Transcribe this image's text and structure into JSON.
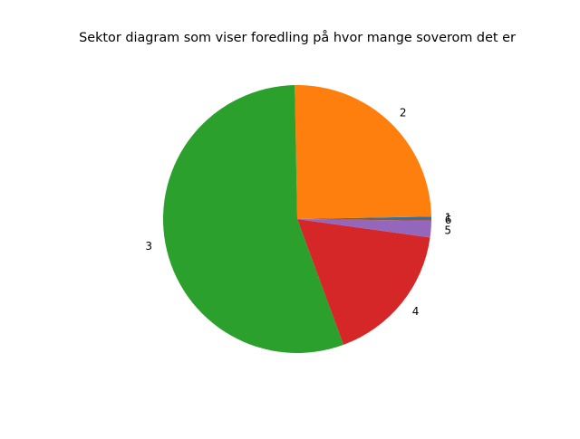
{
  "chart_data": {
    "type": "pie",
    "title": "Sektor diagram som viser foredling på hvor mange soverom det er",
    "start_angle_deg": 0,
    "direction": "counterclockwise",
    "legend": "none",
    "slices": [
      {
        "label": "1",
        "value": 0.3,
        "color": "#1f77b4"
      },
      {
        "label": "2",
        "value": 25.0,
        "color": "#ff7f0e"
      },
      {
        "label": "3",
        "value": 55.3,
        "color": "#2ca02c"
      },
      {
        "label": "4",
        "value": 17.2,
        "color": "#d62728"
      },
      {
        "label": "5",
        "value": 2.0,
        "color": "#9467bd"
      },
      {
        "label": "6",
        "value": 0.2,
        "color": "#8c564b"
      }
    ]
  }
}
